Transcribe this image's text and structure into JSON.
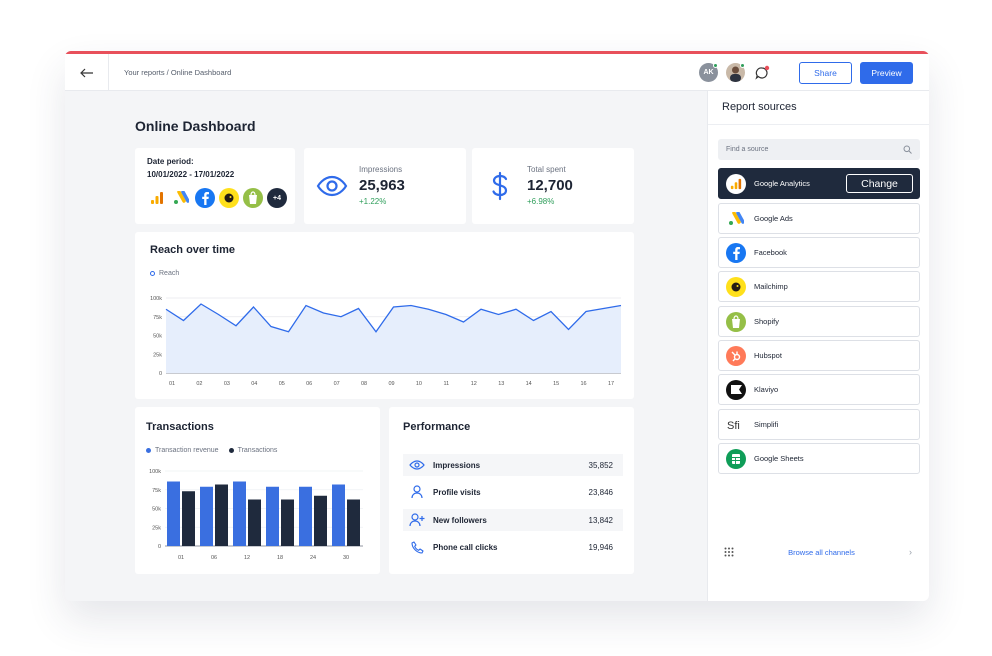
{
  "header": {
    "breadcrumb": "Your reports / Online Dashboard",
    "avatar_initials": "AK",
    "share_label": "Share",
    "preview_label": "Preview"
  },
  "page": {
    "title": "Online Dashboard"
  },
  "date_period": {
    "label": "Date period:",
    "value": "10/01/2022 - 17/01/2022",
    "more_count": "+4"
  },
  "kpis": {
    "impressions": {
      "label": "Impressions",
      "value": "25,963",
      "delta": "+1.22%"
    },
    "total_spent": {
      "label": "Total spent",
      "value": "12,700",
      "delta": "+6.98%"
    }
  },
  "reach": {
    "title": "Reach over time",
    "legend": "Reach"
  },
  "transactions": {
    "title": "Transactions",
    "legend_revenue": "Transaction revenue",
    "legend_tx": "Transactions"
  },
  "performance": {
    "title": "Performance",
    "rows": [
      {
        "label": "Impressions",
        "value": "35,852"
      },
      {
        "label": "Profile visits",
        "value": "23,846"
      },
      {
        "label": "New followers",
        "value": "13,842"
      },
      {
        "label": "Phone call clicks",
        "value": "19,946"
      }
    ]
  },
  "panel": {
    "title": "Report sources",
    "search_placeholder": "Find a source",
    "change_label": "Change",
    "browse_label": "Browse all channels",
    "sources": [
      {
        "name": "Google Analytics",
        "icon": "google-analytics-icon",
        "active": true
      },
      {
        "name": "Google Ads",
        "icon": "google-ads-icon"
      },
      {
        "name": "Facebook",
        "icon": "facebook-icon"
      },
      {
        "name": "Mailchimp",
        "icon": "mailchimp-icon"
      },
      {
        "name": "Shopify",
        "icon": "shopify-icon"
      },
      {
        "name": "Hubspot",
        "icon": "hubspot-icon"
      },
      {
        "name": "Klaviyo",
        "icon": "klaviyo-icon"
      },
      {
        "name": "Simplifi",
        "icon": "simplifi-icon"
      },
      {
        "name": "Google Sheets",
        "icon": "google-sheets-icon"
      }
    ]
  },
  "colors": {
    "accent": "#2f6bea",
    "dark": "#1f2a3d",
    "positive": "#2f9e5b",
    "top_accent": "#e8505b"
  },
  "chart_data": [
    {
      "type": "area",
      "title": "Reach over time",
      "series": [
        {
          "name": "Reach",
          "values": [
            85,
            70,
            92,
            78,
            63,
            88,
            62,
            55,
            90,
            80,
            75,
            86,
            55,
            88,
            90,
            85,
            78,
            68,
            85,
            78,
            85,
            70,
            82,
            58,
            82,
            86,
            90
          ]
        }
      ],
      "x_tick_labels": [
        "01",
        "02",
        "03",
        "04",
        "05",
        "06",
        "07",
        "08",
        "09",
        "10",
        "11",
        "12",
        "13",
        "14",
        "15",
        "16",
        "17"
      ],
      "y_tick_labels": [
        "100k",
        "75k",
        "50k",
        "25k",
        "0"
      ],
      "ylim": [
        0,
        100
      ]
    },
    {
      "type": "bar",
      "title": "Transactions",
      "categories": [
        "01",
        "06",
        "12",
        "18",
        "24",
        "30"
      ],
      "series": [
        {
          "name": "Transaction revenue",
          "values": [
            86,
            79,
            86,
            79,
            79,
            82
          ]
        },
        {
          "name": "Transactions",
          "values": [
            73,
            82,
            62,
            62,
            67,
            62
          ]
        }
      ],
      "x_tick_labels": [
        "01",
        "06",
        "12",
        "18",
        "24",
        "30"
      ],
      "y_tick_labels": [
        "100k",
        "75k",
        "50k",
        "25k",
        "0"
      ],
      "ylim": [
        0,
        100
      ]
    }
  ]
}
